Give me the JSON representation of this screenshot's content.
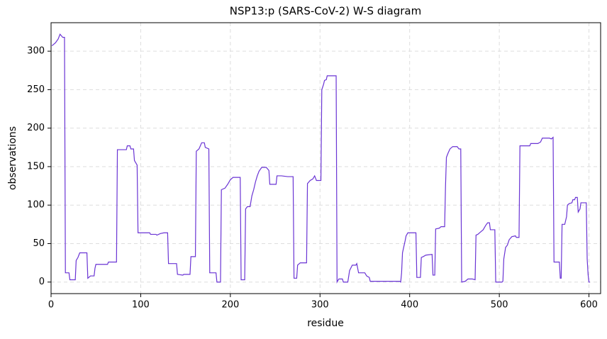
{
  "chart_data": {
    "type": "line",
    "title": "NSP13:p (SARS-CoV-2) W-S diagram",
    "x_label": "residue",
    "y_label": "observations",
    "xlim": [
      0,
      613
    ],
    "ylim": [
      -15,
      337
    ],
    "xticks": [
      0,
      100,
      200,
      300,
      400,
      500,
      600
    ],
    "yticks": [
      0,
      50,
      100,
      150,
      200,
      250,
      300
    ],
    "grid": true,
    "series": [
      {
        "name": "observations",
        "color": "#6a34d4",
        "x": [
          1,
          5,
          8,
          10,
          13,
          15,
          16,
          20,
          21,
          27,
          28,
          30,
          32,
          40,
          41,
          44,
          48,
          49,
          50,
          63,
          64,
          73,
          74,
          84,
          85,
          88,
          89,
          92,
          93,
          96,
          97,
          110,
          111,
          117,
          118,
          122,
          126,
          130,
          131,
          140,
          141,
          147,
          148,
          155,
          156,
          161,
          162,
          165,
          168,
          171,
          172,
          176,
          177,
          184,
          185,
          189,
          190,
          194,
          197,
          200,
          203,
          211,
          212,
          216,
          217,
          219,
          222,
          224,
          226,
          228,
          230,
          232,
          235,
          240,
          243,
          244,
          251,
          252,
          257,
          264,
          270,
          271,
          274,
          275,
          278,
          285,
          286,
          289,
          292,
          294,
          296,
          301,
          302,
          304,
          305,
          307,
          308,
          318,
          319,
          321,
          325,
          326,
          331,
          333,
          336,
          340,
          341,
          343,
          350,
          352,
          355,
          356,
          389,
          390,
          391,
          392,
          395,
          396,
          398,
          407,
          408,
          412,
          413,
          415,
          418,
          425,
          426,
          428,
          429,
          433,
          435,
          439,
          440,
          441,
          443,
          445,
          448,
          453,
          455,
          457,
          458,
          462,
          465,
          470,
          473,
          474,
          476,
          479,
          482,
          485,
          487,
          489,
          490,
          495,
          496,
          503,
          504,
          505,
          507,
          509,
          511,
          514,
          518,
          519,
          522,
          523,
          534,
          535,
          543,
          546,
          548,
          556,
          558,
          560,
          561,
          567,
          568,
          569,
          570,
          573,
          575,
          576,
          578,
          581,
          582,
          584,
          585,
          587,
          588,
          590,
          591,
          597,
          598,
          599,
          600,
          601
        ],
        "values": [
          307,
          311,
          316,
          322,
          318,
          318,
          12,
          12,
          3,
          3,
          28,
          32,
          38,
          38,
          5,
          8,
          8,
          18,
          23,
          23,
          26,
          26,
          172,
          172,
          177,
          177,
          173,
          173,
          158,
          152,
          64,
          64,
          62,
          62,
          61,
          63,
          64,
          64,
          24,
          24,
          10,
          9,
          10,
          10,
          33,
          33,
          170,
          173,
          181,
          181,
          175,
          173,
          12,
          12,
          0,
          0,
          120,
          122,
          127,
          133,
          136,
          136,
          3,
          3,
          95,
          98,
          98,
          112,
          120,
          130,
          138,
          144,
          149,
          149,
          145,
          127,
          127,
          138,
          138,
          137,
          137,
          5,
          5,
          22,
          25,
          25,
          128,
          132,
          134,
          138,
          132,
          132,
          250,
          257,
          262,
          263,
          268,
          268,
          0,
          4,
          4,
          0,
          0,
          15,
          22,
          22,
          24,
          12,
          12,
          8,
          6,
          1,
          1,
          0,
          12,
          38,
          54,
          60,
          64,
          64,
          6,
          6,
          32,
          33,
          35,
          36,
          9,
          9,
          69,
          70,
          72,
          72,
          125,
          162,
          168,
          173,
          176,
          176,
          173,
          173,
          0,
          1,
          4,
          4,
          3,
          61,
          62,
          65,
          68,
          74,
          77,
          77,
          68,
          68,
          0,
          0,
          1,
          30,
          45,
          48,
          55,
          59,
          60,
          58,
          58,
          177,
          177,
          180,
          180,
          182,
          187,
          187,
          186,
          188,
          26,
          26,
          5,
          5,
          75,
          75,
          85,
          100,
          102,
          103,
          107,
          107,
          110,
          110,
          91,
          95,
          103,
          103,
          30,
          10,
          0,
          0
        ]
      }
    ]
  }
}
